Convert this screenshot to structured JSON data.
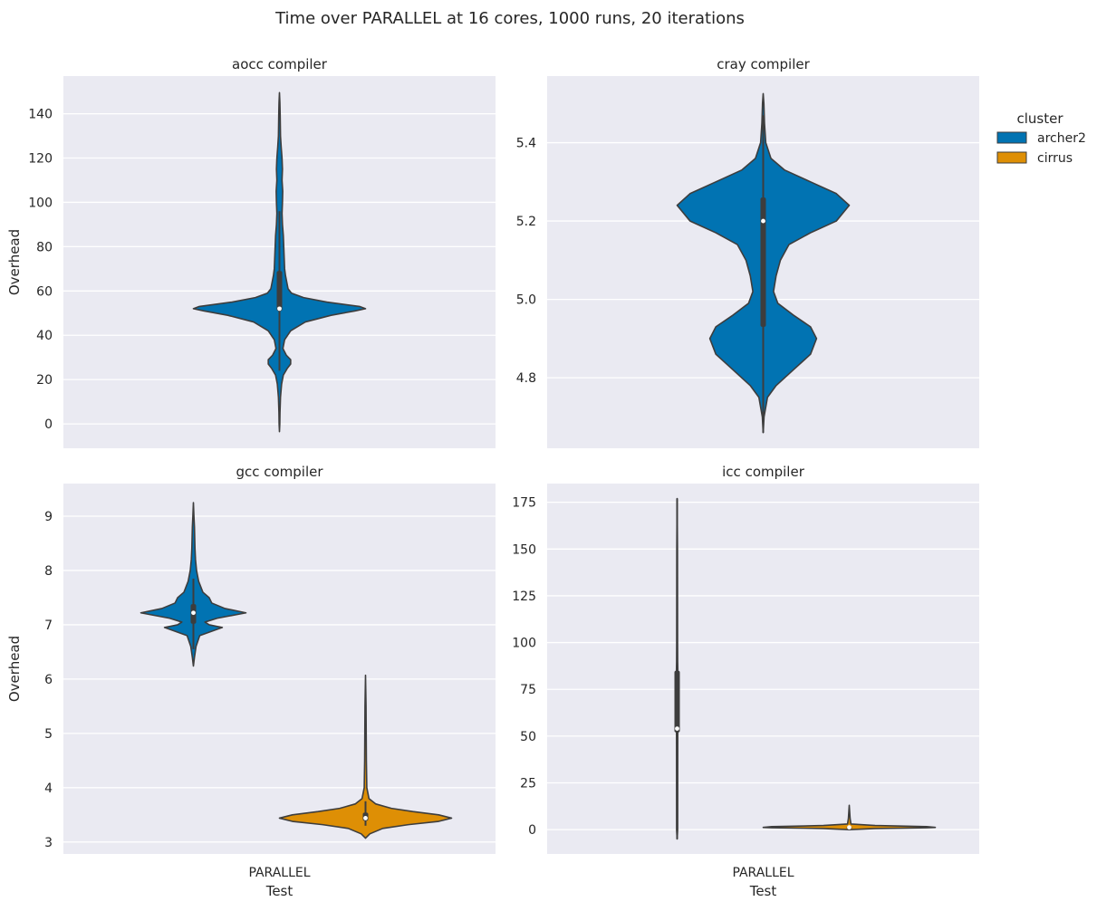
{
  "chart_data": {
    "type": "violin",
    "title": "Time over PARALLEL at 16 cores, 1000 runs, 20 iterations",
    "legend": {
      "title": "cluster",
      "placement": "right",
      "entries": [
        {
          "name": "archer2",
          "color": "#0173b2"
        },
        {
          "name": "cirrus",
          "color": "#de8f05"
        }
      ]
    },
    "grid": true,
    "background_color": "#eaeaf2",
    "panels": [
      {
        "title": "aocc compiler",
        "ylabel": "Overhead",
        "xlabel": "",
        "categories": [
          "PARALLEL"
        ],
        "show_x_tick_labels": false,
        "ylim": [
          -11,
          157
        ],
        "yticks": [
          0,
          20,
          40,
          60,
          80,
          100,
          120,
          140
        ],
        "ytick_labels": [
          "0",
          "20",
          "40",
          "60",
          "80",
          "100",
          "120",
          "140"
        ],
        "violins": [
          {
            "cluster": "archer2",
            "slot": 0,
            "min": -3.5,
            "max": 149.5,
            "q1": 51,
            "median": 52,
            "q3": 69,
            "whisker_low": 24,
            "whisker_high": 96,
            "profile": [
              [
                -3.5,
                0.0
              ],
              [
                0,
                0.004
              ],
              [
                5,
                0.006
              ],
              [
                12,
                0.012
              ],
              [
                18,
                0.025
              ],
              [
                22,
                0.045
              ],
              [
                25,
                0.09
              ],
              [
                27,
                0.13
              ],
              [
                29,
                0.13
              ],
              [
                31,
                0.08
              ],
              [
                34,
                0.04
              ],
              [
                38,
                0.06
              ],
              [
                42,
                0.13
              ],
              [
                46,
                0.3
              ],
              [
                49,
                0.6
              ],
              [
                51,
                0.88
              ],
              [
                52,
                1.0
              ],
              [
                53,
                0.93
              ],
              [
                55,
                0.55
              ],
              [
                57,
                0.28
              ],
              [
                59,
                0.14
              ],
              [
                61,
                0.1
              ],
              [
                64,
                0.085
              ],
              [
                67,
                0.07
              ],
              [
                70,
                0.06
              ],
              [
                75,
                0.055
              ],
              [
                80,
                0.05
              ],
              [
                85,
                0.045
              ],
              [
                90,
                0.035
              ],
              [
                95,
                0.03
              ],
              [
                100,
                0.035
              ],
              [
                105,
                0.038
              ],
              [
                110,
                0.03
              ],
              [
                115,
                0.035
              ],
              [
                120,
                0.03
              ],
              [
                125,
                0.02
              ],
              [
                130,
                0.012
              ],
              [
                135,
                0.01
              ],
              [
                140,
                0.008
              ],
              [
                145,
                0.005
              ],
              [
                149.5,
                0.0
              ]
            ]
          }
        ]
      },
      {
        "title": "cray compiler",
        "ylabel": "",
        "xlabel": "",
        "categories": [
          "PARALLEL"
        ],
        "show_x_tick_labels": false,
        "ylim": [
          4.62,
          5.57
        ],
        "yticks": [
          4.8,
          5.0,
          5.2,
          5.4
        ],
        "ytick_labels": [
          "4.8",
          "5.0",
          "5.2",
          "5.4"
        ],
        "violins": [
          {
            "cluster": "archer2",
            "slot": 0,
            "min": 4.66,
            "max": 5.525,
            "q1": 4.93,
            "median": 5.2,
            "q3": 5.26,
            "whisker_low": 4.66,
            "whisker_high": 5.47,
            "profile": [
              [
                4.66,
                0.0
              ],
              [
                4.7,
                0.01
              ],
              [
                4.75,
                0.05
              ],
              [
                4.78,
                0.15
              ],
              [
                4.82,
                0.35
              ],
              [
                4.86,
                0.55
              ],
              [
                4.9,
                0.62
              ],
              [
                4.93,
                0.55
              ],
              [
                4.96,
                0.35
              ],
              [
                4.99,
                0.17
              ],
              [
                5.02,
                0.12
              ],
              [
                5.06,
                0.15
              ],
              [
                5.1,
                0.2
              ],
              [
                5.14,
                0.3
              ],
              [
                5.17,
                0.55
              ],
              [
                5.2,
                0.85
              ],
              [
                5.24,
                1.0
              ],
              [
                5.27,
                0.85
              ],
              [
                5.3,
                0.55
              ],
              [
                5.33,
                0.25
              ],
              [
                5.36,
                0.09
              ],
              [
                5.4,
                0.03
              ],
              [
                5.45,
                0.015
              ],
              [
                5.5,
                0.008
              ],
              [
                5.525,
                0.0
              ]
            ]
          }
        ]
      },
      {
        "title": "gcc compiler",
        "ylabel": "Overhead",
        "xlabel": "Test",
        "categories": [
          "PARALLEL"
        ],
        "show_x_tick_labels": true,
        "ylim": [
          2.78,
          9.6
        ],
        "yticks": [
          3,
          4,
          5,
          6,
          7,
          8,
          9
        ],
        "ytick_labels": [
          "3",
          "4",
          "5",
          "6",
          "7",
          "8",
          "9"
        ],
        "violins": [
          {
            "cluster": "archer2",
            "slot": 0,
            "min": 6.24,
            "max": 9.25,
            "q1": 7.02,
            "median": 7.22,
            "q3": 7.38,
            "whisker_low": 6.55,
            "whisker_high": 7.85,
            "profile": [
              [
                6.24,
                0.0
              ],
              [
                6.4,
                0.02
              ],
              [
                6.6,
                0.05
              ],
              [
                6.8,
                0.12
              ],
              [
                6.95,
                0.55
              ],
              [
                7.0,
                0.3
              ],
              [
                7.05,
                0.22
              ],
              [
                7.12,
                0.45
              ],
              [
                7.22,
                1.0
              ],
              [
                7.3,
                0.6
              ],
              [
                7.4,
                0.35
              ],
              [
                7.5,
                0.3
              ],
              [
                7.6,
                0.18
              ],
              [
                7.8,
                0.1
              ],
              [
                8.0,
                0.06
              ],
              [
                8.2,
                0.04
              ],
              [
                8.4,
                0.03
              ],
              [
                8.6,
                0.025
              ],
              [
                8.8,
                0.02
              ],
              [
                9.0,
                0.01
              ],
              [
                9.25,
                0.0
              ]
            ]
          },
          {
            "cluster": "cirrus",
            "slot": 1,
            "min": 3.07,
            "max": 6.07,
            "q1": 3.39,
            "median": 3.44,
            "q3": 3.54,
            "whisker_low": 3.3,
            "whisker_high": 3.75,
            "profile": [
              [
                3.07,
                0.0
              ],
              [
                3.15,
                0.05
              ],
              [
                3.25,
                0.2
              ],
              [
                3.32,
                0.5
              ],
              [
                3.38,
                0.85
              ],
              [
                3.44,
                1.0
              ],
              [
                3.5,
                0.85
              ],
              [
                3.56,
                0.55
              ],
              [
                3.62,
                0.3
              ],
              [
                3.7,
                0.12
              ],
              [
                3.8,
                0.04
              ],
              [
                4.0,
                0.015
              ],
              [
                4.5,
                0.01
              ],
              [
                5.0,
                0.008
              ],
              [
                5.5,
                0.006
              ],
              [
                6.07,
                0.0
              ]
            ]
          }
        ]
      },
      {
        "title": "icc compiler",
        "ylabel": "",
        "xlabel": "Test",
        "categories": [
          "PARALLEL"
        ],
        "show_x_tick_labels": true,
        "ylim": [
          -13,
          185
        ],
        "yticks": [
          0,
          25,
          50,
          75,
          100,
          125,
          150,
          175
        ],
        "ytick_labels": [
          "0",
          "25",
          "50",
          "75",
          "100",
          "125",
          "150",
          "175"
        ],
        "violins": [
          {
            "cluster": "archer2",
            "slot": 0,
            "min": -5,
            "max": 177,
            "q1": 52,
            "median": 54,
            "q3": 85,
            "whisker_low": -5,
            "whisker_high": 177,
            "profile": [
              [
                -5,
                0.0
              ],
              [
                0,
                0.006
              ],
              [
                50,
                0.007
              ],
              [
                55,
                0.008
              ],
              [
                60,
                0.01
              ],
              [
                70,
                0.012
              ],
              [
                80,
                0.01
              ],
              [
                90,
                0.006
              ],
              [
                100,
                0.005
              ],
              [
                150,
                0.004
              ],
              [
                177,
                0.0
              ]
            ]
          },
          {
            "cluster": "cirrus",
            "slot": 1,
            "min": 0,
            "max": 13,
            "q1": 1.0,
            "median": 1.2,
            "q3": 1.5,
            "whisker_low": 0.4,
            "whisker_high": 2.2,
            "profile": [
              [
                0.0,
                0.0
              ],
              [
                0.6,
                0.3
              ],
              [
                1.0,
                0.9
              ],
              [
                1.2,
                1.0
              ],
              [
                1.6,
                0.9
              ],
              [
                2.2,
                0.3
              ],
              [
                3.0,
                0.02
              ],
              [
                6.0,
                0.01
              ],
              [
                13.0,
                0.0
              ]
            ]
          }
        ]
      }
    ]
  }
}
